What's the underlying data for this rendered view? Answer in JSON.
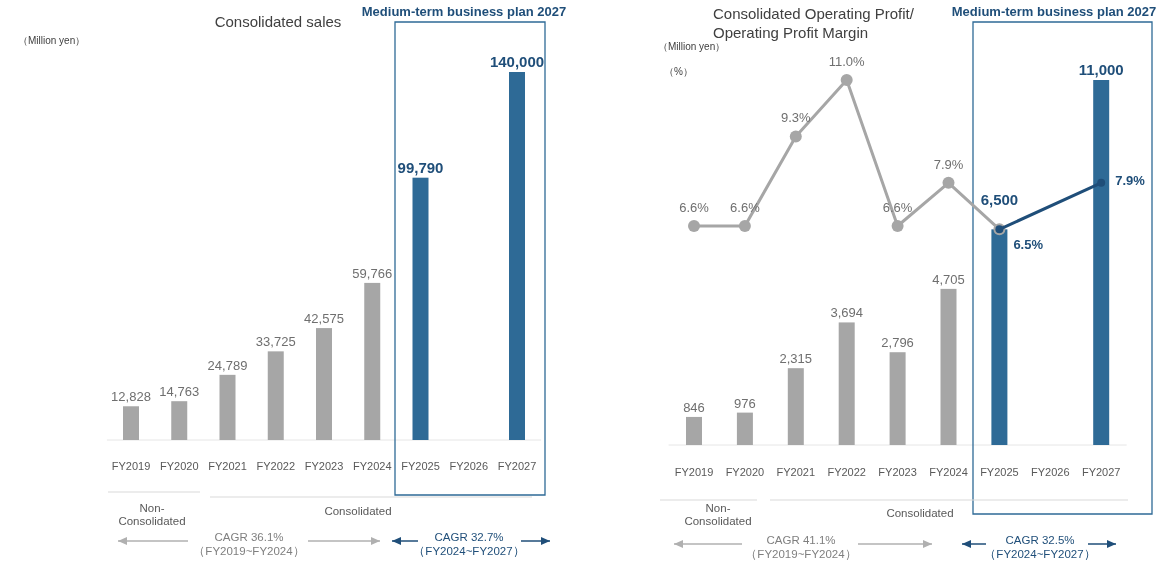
{
  "chart_data": [
    {
      "type": "bar",
      "title": "Consolidated sales",
      "ylabel": "（Million yen）",
      "categories": [
        "FY2019",
        "FY2020",
        "FY2021",
        "FY2022",
        "FY2023",
        "FY2024",
        "FY2025",
        "FY2026",
        "FY2027"
      ],
      "values": [
        12828,
        14763,
        24789,
        33725,
        42575,
        59766,
        99790,
        null,
        140000
      ],
      "colors": [
        "#a6a6a6",
        "#a6a6a6",
        "#a6a6a6",
        "#a6a6a6",
        "#a6a6a6",
        "#a6a6a6",
        "#2e6a96",
        null,
        "#2e6a96"
      ],
      "value_labels": [
        "12,828",
        "14,763",
        "24,789",
        "33,725",
        "42,575",
        "59,766",
        "99,790",
        null,
        "140,000"
      ],
      "annotations": [
        "Medium-term business plan 2027",
        "Non-\nConsolidated",
        "Consolidated",
        "CAGR 36.1%\n（FY2019~FY2024）",
        "CAGR 32.7%\n（FY2024~FY2027）"
      ]
    },
    {
      "type": "bar",
      "title": "Consolidated Operating Profit/\nOperating Profit Margin",
      "ylabel": "（Million yen）",
      "y2label": "（%）",
      "categories": [
        "FY2019",
        "FY2020",
        "FY2021",
        "FY2022",
        "FY2023",
        "FY2024",
        "FY2025",
        "FY2026",
        "FY2027"
      ],
      "series": [
        {
          "values": [
            846,
            976,
            2315,
            3694,
            2796,
            4705,
            6500,
            null,
            11000
          ],
          "colors": [
            "#a6a6a6",
            "#a6a6a6",
            "#a6a6a6",
            "#a6a6a6",
            "#a6a6a6",
            "#a6a6a6",
            "#2e6a96",
            null,
            "#2e6a96"
          ],
          "value_labels": [
            "846",
            "976",
            "2,315",
            "3,694",
            "2,796",
            "4,705",
            "6,500",
            null,
            "11,000"
          ]
        },
        {
          "type": "line",
          "axis": "y2",
          "color": "#a6a6a6",
          "values": [
            6.6,
            6.6,
            9.3,
            11.0,
            6.6,
            7.9,
            6.5,
            null,
            null
          ],
          "value_labels": [
            "6.6%",
            "6.6%",
            "9.3%",
            "11.0%",
            "6.6%",
            "7.9%",
            null,
            null,
            null
          ]
        },
        {
          "type": "line",
          "axis": "y2",
          "color": "#1f4e79",
          "values": [
            null,
            null,
            null,
            null,
            null,
            null,
            6.5,
            null,
            7.9
          ],
          "value_labels": [
            null,
            null,
            null,
            null,
            null,
            null,
            "6.5%",
            null,
            "7.9%"
          ]
        }
      ],
      "marker": "circle",
      "annotations": [
        "Medium-term business plan 2027",
        "Non-\nConsolidated",
        "Consolidated",
        "CAGR 41.1%\n（FY2019~FY2024）",
        "CAGR 32.5%\n（FY2024~FY2027）"
      ]
    }
  ]
}
